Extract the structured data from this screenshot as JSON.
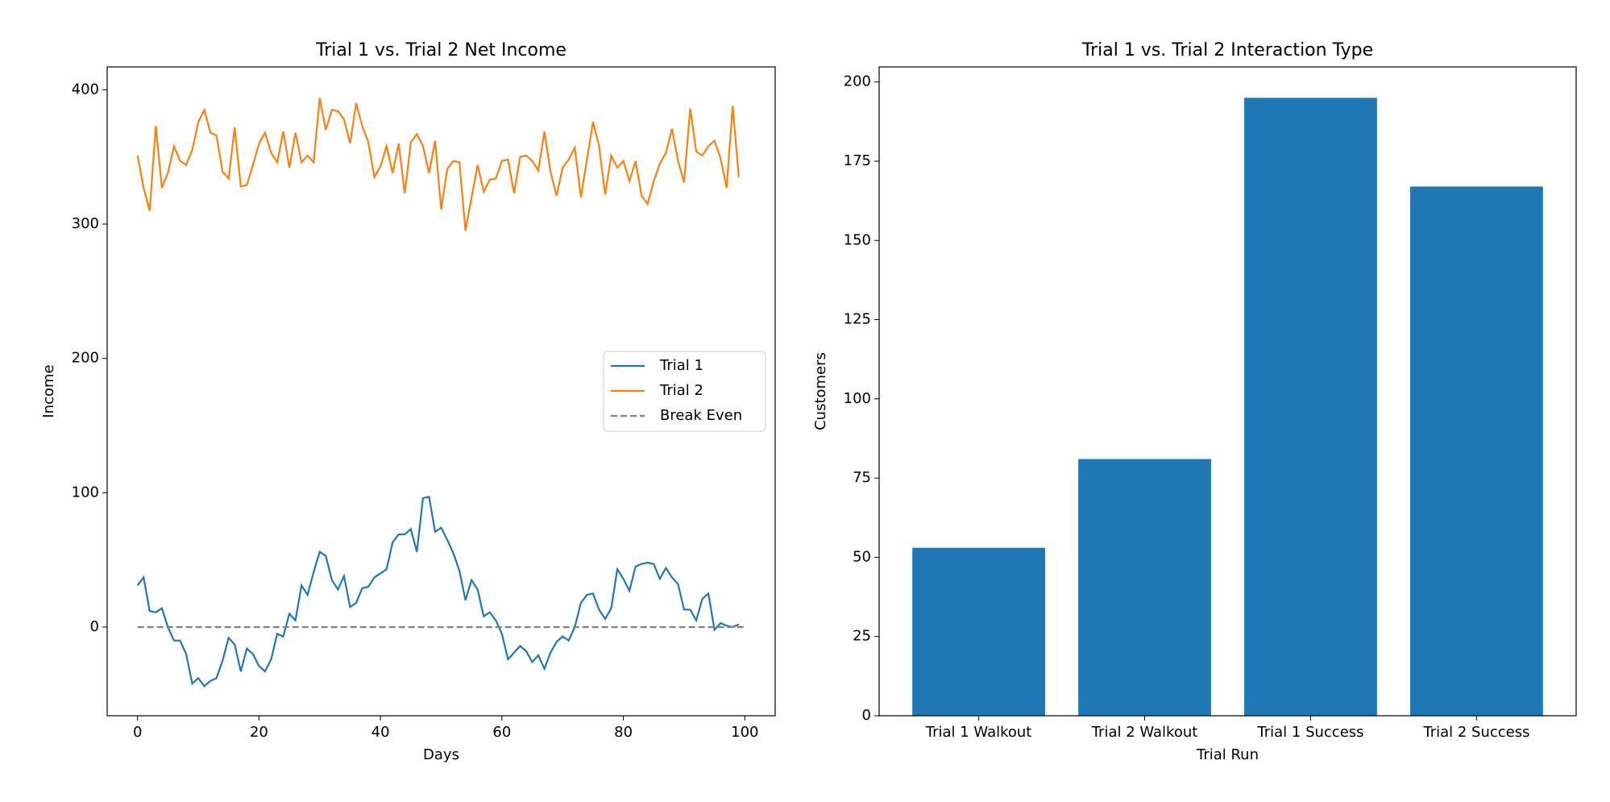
{
  "chart_data": [
    {
      "type": "line",
      "title": "Trial 1 vs. Trial 2 Net Income",
      "x_label": "Days",
      "y_label": "Income",
      "x": [
        0,
        1,
        2,
        3,
        4,
        5,
        6,
        7,
        8,
        9,
        10,
        11,
        12,
        13,
        14,
        15,
        16,
        17,
        18,
        19,
        20,
        21,
        22,
        23,
        24,
        25,
        26,
        27,
        28,
        29,
        30,
        31,
        32,
        33,
        34,
        35,
        36,
        37,
        38,
        39,
        40,
        41,
        42,
        43,
        44,
        45,
        46,
        47,
        48,
        49,
        50,
        51,
        52,
        53,
        54,
        55,
        56,
        57,
        58,
        59,
        60,
        61,
        62,
        63,
        64,
        65,
        66,
        67,
        68,
        69,
        70,
        71,
        72,
        73,
        74,
        75,
        76,
        77,
        78,
        79,
        80,
        81,
        82,
        83,
        84,
        85,
        86,
        87,
        88,
        89,
        90,
        91,
        92,
        93,
        94,
        95,
        96,
        97,
        98,
        99
      ],
      "series": [
        {
          "name": "Trial 1",
          "color": "#1f77b4",
          "values": [
            31,
            37,
            12,
            11,
            14,
            0,
            -10,
            -10,
            -20,
            -42,
            -38,
            -44,
            -40,
            -38,
            -25,
            -8,
            -13,
            -33,
            -16,
            -20,
            -29,
            -33,
            -24,
            -5,
            -7,
            10,
            5,
            31,
            24,
            41,
            56,
            53,
            35,
            28,
            38,
            15,
            18,
            29,
            30,
            37,
            40,
            43,
            63,
            69,
            69,
            73,
            56,
            96,
            97,
            71,
            74,
            65,
            55,
            42,
            20,
            35,
            28,
            8,
            11,
            5,
            -5,
            -24,
            -19,
            -14,
            -18,
            -26,
            -21,
            -31,
            -19,
            -11,
            -7,
            -10,
            0,
            18,
            24,
            25,
            13,
            6,
            14,
            43,
            36,
            27,
            45,
            47,
            48,
            47,
            36,
            44,
            37,
            32,
            13,
            13,
            5,
            21,
            25,
            -2,
            3,
            1,
            0,
            2
          ]
        },
        {
          "name": "Trial 2",
          "color": "#ff7f0e",
          "values": [
            351,
            327,
            310,
            373,
            327,
            338,
            358,
            347,
            344,
            355,
            376,
            385,
            368,
            366,
            339,
            334,
            372,
            328,
            329,
            344,
            360,
            368,
            353,
            346,
            369,
            342,
            368,
            346,
            351,
            346,
            394,
            370,
            385,
            384,
            378,
            360,
            390,
            373,
            361,
            335,
            343,
            358,
            338,
            360,
            323,
            361,
            367,
            358,
            338,
            362,
            311,
            341,
            347,
            346,
            295,
            320,
            344,
            324,
            333,
            334,
            347,
            348,
            323,
            350,
            351,
            347,
            340,
            369,
            339,
            321,
            342,
            348,
            357,
            320,
            348,
            376,
            358,
            322,
            351,
            342,
            347,
            332,
            347,
            321,
            315,
            332,
            345,
            353,
            371,
            347,
            331,
            386,
            354,
            351,
            358,
            362,
            349,
            327,
            388,
            335
          ]
        },
        {
          "name": "Break Even",
          "color": "#808080",
          "linestyle": "dashed",
          "x": [
            0,
            100
          ],
          "values": [
            0,
            0
          ]
        }
      ],
      "xlim": [
        -5,
        105
      ],
      "xticks": [
        0,
        20,
        40,
        60,
        80,
        100
      ],
      "ylim": [
        -66,
        417
      ],
      "yticks": [
        0,
        100,
        200,
        300,
        400
      ],
      "legend": "center right"
    },
    {
      "type": "bar",
      "title": "Trial 1 vs. Trial 2 Interaction Type",
      "x_label": "Trial Run",
      "y_label": "Customers",
      "categories": [
        "Trial 1 Walkout",
        "Trial 2 Walkout",
        "Trial 1 Success",
        "Trial 2 Success"
      ],
      "values": [
        53,
        81,
        195,
        167
      ],
      "color": "#1f77b4",
      "ylim": [
        0,
        204.75
      ],
      "yticks": [
        0,
        25,
        50,
        75,
        100,
        125,
        150,
        175,
        200
      ]
    }
  ]
}
